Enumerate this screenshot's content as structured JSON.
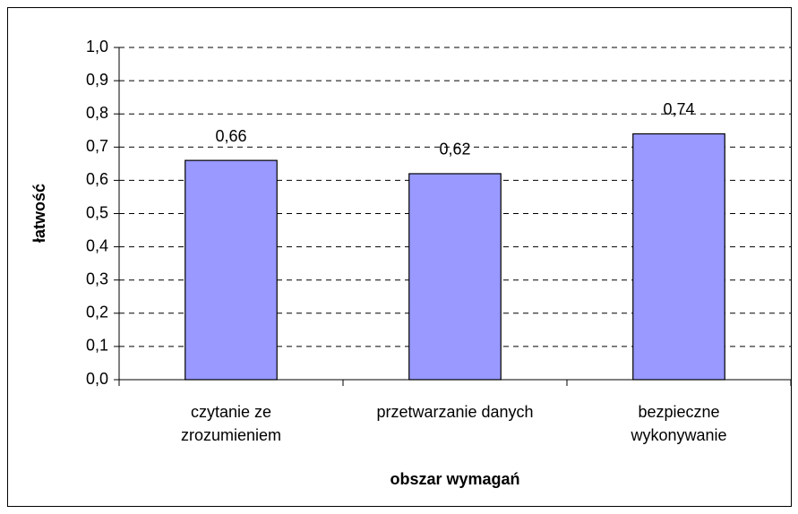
{
  "chart_data": {
    "type": "bar",
    "categories": [
      "czytanie ze\nzrozumieniem",
      "przetwarzanie danych",
      "bezpieczne\nwykonywanie"
    ],
    "values": [
      0.66,
      0.62,
      0.74
    ],
    "value_labels": [
      "0,66",
      "0,62",
      "0,74"
    ],
    "color": "#9999ff",
    "y_label": "łatwość",
    "x_label": "obszar wymagań",
    "ylim": [
      0,
      1
    ],
    "yticks": [
      {
        "value": 0,
        "label": "0,0"
      },
      {
        "value": 0.1,
        "label": "0,1"
      },
      {
        "value": 0.2,
        "label": "0,2"
      },
      {
        "value": 0.3,
        "label": "0,3"
      },
      {
        "value": 0.4,
        "label": "0,4"
      },
      {
        "value": 0.5,
        "label": "0,5"
      },
      {
        "value": 0.6,
        "label": "0,6"
      },
      {
        "value": 0.7,
        "label": "0,7"
      },
      {
        "value": 0.8,
        "label": "0,8"
      },
      {
        "value": 0.9,
        "label": "0,9"
      },
      {
        "value": 1,
        "label": "1,0"
      }
    ],
    "grid": true
  }
}
